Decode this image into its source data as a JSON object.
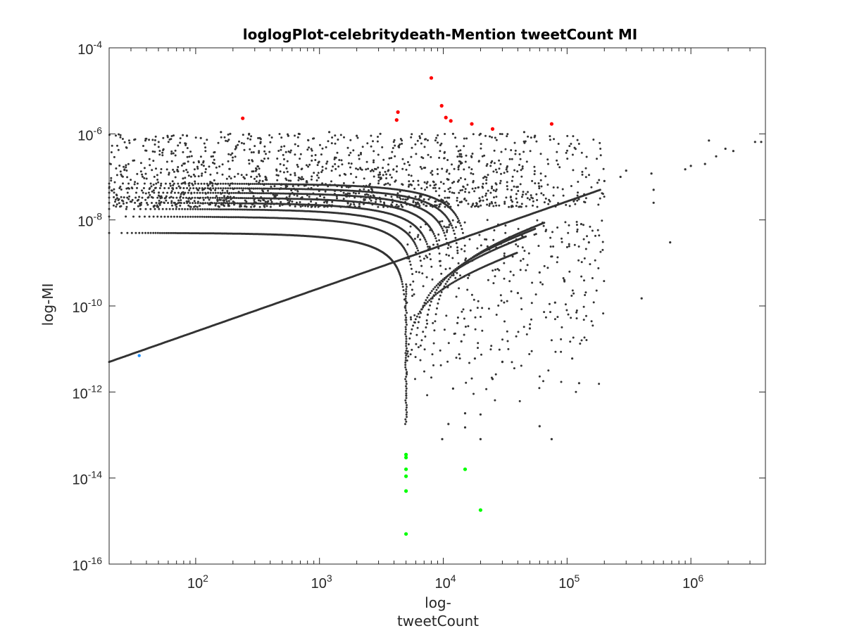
{
  "chart_data": {
    "type": "scatter",
    "title": "loglogPlot-celebritydeath-Mention tweetCount MI",
    "xlabel_lines": [
      "log-",
      "tweetCount"
    ],
    "ylabel": "log-MI",
    "xscale": "log",
    "yscale": "log",
    "xlim": [
      20,
      4000000
    ],
    "ylim": [
      1e-16,
      0.0001
    ],
    "grid": false,
    "legend": "none",
    "x_ticks": [
      {
        "base": "10",
        "exp": "2",
        "value": 100
      },
      {
        "base": "10",
        "exp": "3",
        "value": 1000
      },
      {
        "base": "10",
        "exp": "4",
        "value": 10000
      },
      {
        "base": "10",
        "exp": "5",
        "value": 100000
      },
      {
        "base": "10",
        "exp": "6",
        "value": 1000000
      }
    ],
    "y_ticks": [
      {
        "base": "10",
        "exp": "-16",
        "value": 1e-16
      },
      {
        "base": "10",
        "exp": "-14",
        "value": 1e-14
      },
      {
        "base": "10",
        "exp": "-12",
        "value": 1e-12
      },
      {
        "base": "10",
        "exp": "-10",
        "value": 1e-10
      },
      {
        "base": "10",
        "exp": "-8",
        "value": 1e-08
      },
      {
        "base": "10",
        "exp": "-6",
        "value": 1e-06
      },
      {
        "base": "10",
        "exp": "-4",
        "value": 0.0001
      }
    ],
    "colors": {
      "bulk": "#333333",
      "high_mi": "#ff0000",
      "low_mi": "#00ff00",
      "marked": "#1e90ff",
      "axes": "#262626"
    },
    "series": [
      {
        "role": "high_mi",
        "color": "#ff0000",
        "points": [
          [
            240,
            2.3e-06
          ],
          [
            4300,
            3.2e-06
          ],
          [
            4200,
            2.1e-06
          ],
          [
            8000,
            2e-05
          ],
          [
            9700,
            4.5e-06
          ],
          [
            10500,
            2.4e-06
          ],
          [
            11500,
            2e-06
          ],
          [
            17000,
            1.7e-06
          ],
          [
            25000,
            1.3e-06
          ],
          [
            75000,
            1.7e-06
          ]
        ]
      },
      {
        "role": "low_mi",
        "color": "#00ff00",
        "points": [
          [
            5000,
            3.5e-14
          ],
          [
            5000,
            3e-14
          ],
          [
            5000,
            1.6e-14
          ],
          [
            5000,
            1.1e-14
          ],
          [
            5000,
            5e-15
          ],
          [
            15000,
            1.6e-14
          ],
          [
            20000,
            1.8e-15
          ],
          [
            5000,
            5e-16
          ]
        ]
      },
      {
        "role": "marked",
        "color": "#1e90ff",
        "points": [
          [
            35,
            7e-12
          ]
        ]
      },
      {
        "role": "bulk_scattered",
        "color": "#333333",
        "points": [
          [
            9800,
            8e-14
          ],
          [
            12000,
            1.2e-12
          ],
          [
            11000,
            1.8e-13
          ],
          [
            15000,
            3.2e-13
          ],
          [
            15000,
            1.5e-13
          ],
          [
            20000,
            8e-14
          ],
          [
            20000,
            3e-13
          ],
          [
            60000,
            1.6e-13
          ],
          [
            75000,
            8e-14
          ],
          [
            110000,
            6e-12
          ],
          [
            125000,
            1.6e-12
          ],
          [
            400000,
            1.5e-10
          ],
          [
            680000,
            3e-09
          ],
          [
            500000,
            2.5e-08
          ],
          [
            500000,
            5e-08
          ],
          [
            480000,
            1.2e-07
          ],
          [
            300000,
            1.4e-07
          ],
          [
            270000,
            1e-07
          ],
          [
            200000,
            8e-08
          ],
          [
            900000,
            1.5e-07
          ],
          [
            1000000,
            1.8e-07
          ],
          [
            1300000,
            2e-07
          ],
          [
            1600000,
            3e-07
          ],
          [
            2200000,
            4e-07
          ],
          [
            1400000,
            7e-07
          ],
          [
            1900000,
            4.5e-07
          ],
          [
            3300000,
            6.5e-07
          ],
          [
            3700000,
            6.5e-07
          ],
          [
            80000,
            1.2e-10
          ],
          [
            95000,
            4e-10
          ],
          [
            60000,
            6e-10
          ],
          [
            50000,
            3e-11
          ],
          [
            30000,
            5e-12
          ],
          [
            25000,
            2e-12
          ],
          [
            18000,
            6e-12
          ],
          [
            14000,
            1.5e-11
          ],
          [
            13000,
            4e-11
          ],
          [
            40000,
            2e-10
          ],
          [
            150000,
            3e-09
          ],
          [
            130000,
            8e-09
          ],
          [
            270,
            1e-06
          ],
          [
            330,
            8e-07
          ],
          [
            160,
            1.1e-06
          ],
          [
            190,
            1e-06
          ],
          [
            560,
            9e-07
          ],
          [
            680,
            1e-06
          ],
          [
            1200,
            1.1e-06
          ],
          [
            2000,
            9e-07
          ],
          [
            3100,
            1e-06
          ],
          [
            6500,
            8e-07
          ],
          [
            12000,
            1e-06
          ],
          [
            20000,
            1e-06
          ],
          [
            45000,
            1.1e-06
          ],
          [
            55000,
            9e-07
          ],
          [
            85,
            9e-07
          ],
          [
            110,
            8e-07
          ]
        ]
      }
    ],
    "bulk_structure": {
      "upward_line": {
        "from": [
          20,
          5e-12
        ],
        "to": [
          185000,
          5e-08
        ]
      },
      "descending_bands_y_at_xmin": [
        5e-09,
        1.2e-08,
        1.8e-08,
        2.5e-08,
        3.3e-08,
        4.3e-08,
        5.5e-08,
        7e-08
      ],
      "scatter_band_y_range": [
        2e-08,
        1e-06
      ],
      "scatter_band_x_range": [
        20,
        200000
      ]
    }
  }
}
